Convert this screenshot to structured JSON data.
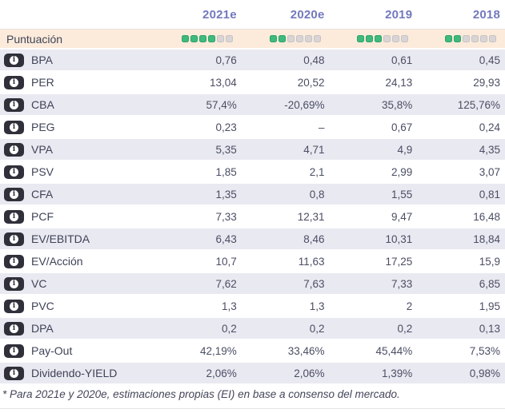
{
  "header": {
    "columns": [
      "2021e",
      "2020e",
      "2019",
      "2018"
    ]
  },
  "score_row": {
    "label": "Puntuación",
    "max": 6,
    "scores": [
      4,
      2,
      3,
      2
    ]
  },
  "rows": [
    {
      "label": "BPA",
      "values": [
        "0,76",
        "0,48",
        "0,61",
        "0,45"
      ]
    },
    {
      "label": "PER",
      "values": [
        "13,04",
        "20,52",
        "24,13",
        "29,93"
      ]
    },
    {
      "label": "CBA",
      "values": [
        "57,4%",
        "-20,69%",
        "35,8%",
        "125,76%"
      ]
    },
    {
      "label": "PEG",
      "values": [
        "0,23",
        "–",
        "0,67",
        "0,24"
      ]
    },
    {
      "label": "VPA",
      "values": [
        "5,35",
        "4,71",
        "4,9",
        "4,35"
      ]
    },
    {
      "label": "PSV",
      "values": [
        "1,85",
        "2,1",
        "2,99",
        "3,07"
      ]
    },
    {
      "label": "CFA",
      "values": [
        "1,35",
        "0,8",
        "1,55",
        "0,81"
      ]
    },
    {
      "label": "PCF",
      "values": [
        "7,33",
        "12,31",
        "9,47",
        "16,48"
      ]
    },
    {
      "label": "EV/EBITDA",
      "values": [
        "6,43",
        "8,46",
        "10,31",
        "18,84"
      ]
    },
    {
      "label": "EV/Acción",
      "values": [
        "10,7",
        "11,63",
        "17,25",
        "15,9"
      ]
    },
    {
      "label": "VC",
      "values": [
        "7,62",
        "7,63",
        "7,33",
        "6,85"
      ]
    },
    {
      "label": "PVC",
      "values": [
        "1,3",
        "1,3",
        "2",
        "1,95"
      ]
    },
    {
      "label": "DPA",
      "values": [
        "0,2",
        "0,2",
        "0,2",
        "0,13"
      ]
    },
    {
      "label": "Pay-Out",
      "values": [
        "42,19%",
        "33,46%",
        "45,44%",
        "7,53%"
      ]
    },
    {
      "label": "Dividendo-YIELD",
      "values": [
        "2,06%",
        "2,06%",
        "1,39%",
        "0,98%"
      ]
    }
  ],
  "footnote": "* Para 2021e y 2020e, estimaciones propias (EI) en base a consenso del mercado.",
  "icons": {
    "info_glyph": "i"
  },
  "colors": {
    "header_text": "#7379be",
    "score_row_bg": "#fcebdb",
    "row_alt_bg": "#e9e9f1",
    "dot_filled": "#3dba7c",
    "dot_empty": "#d9d5d6",
    "info_chip_bg": "#30303b",
    "label_text": "#3f4357"
  }
}
